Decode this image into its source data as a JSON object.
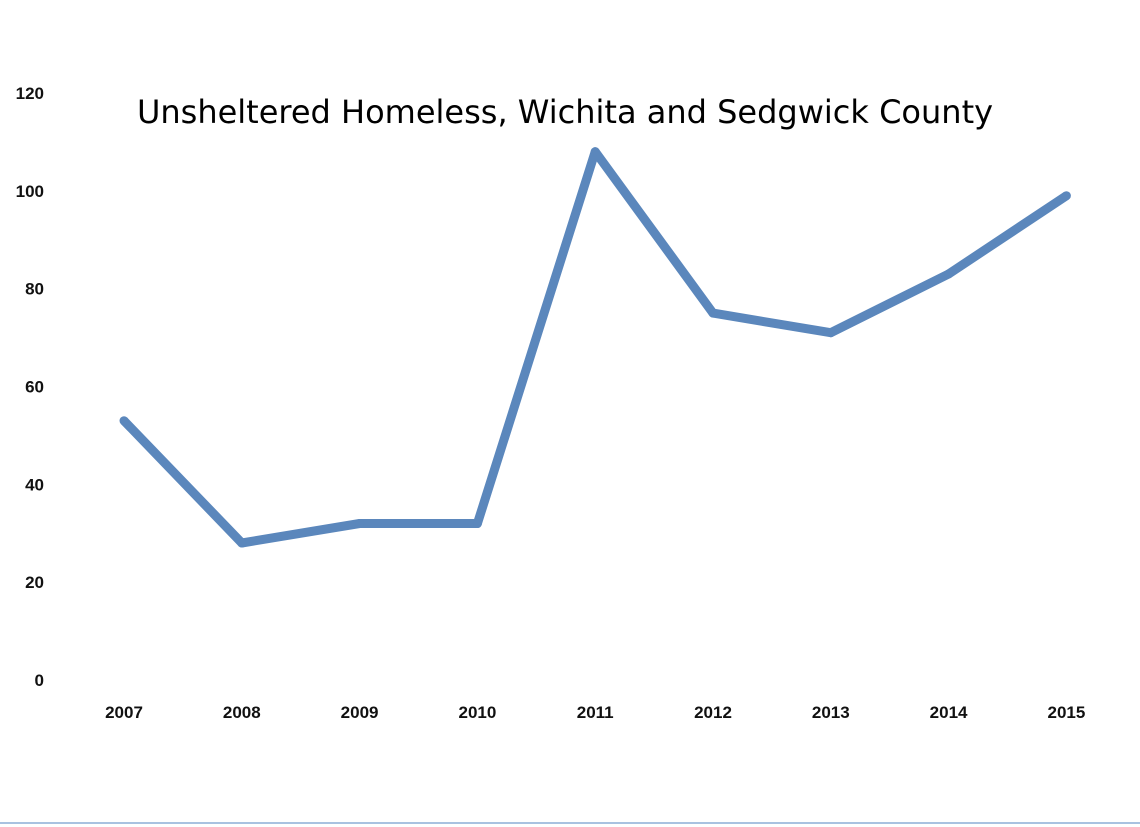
{
  "chart_data": {
    "type": "line",
    "title": "Unsheltered Homeless, Wichita and Sedgwick County",
    "xlabel": "",
    "ylabel": "",
    "categories": [
      "2007",
      "2008",
      "2009",
      "2010",
      "2011",
      "2012",
      "2013",
      "2014",
      "2015"
    ],
    "series": [
      {
        "values": [
          53,
          28,
          32,
          32,
          108,
          75,
          71,
          83,
          99
        ],
        "color": "#5b87bc"
      }
    ],
    "ylim": [
      0,
      120
    ],
    "yticks": [
      "0",
      "20",
      "40",
      "60",
      "80",
      "100",
      "120"
    ],
    "grid": false,
    "legend": "none"
  }
}
